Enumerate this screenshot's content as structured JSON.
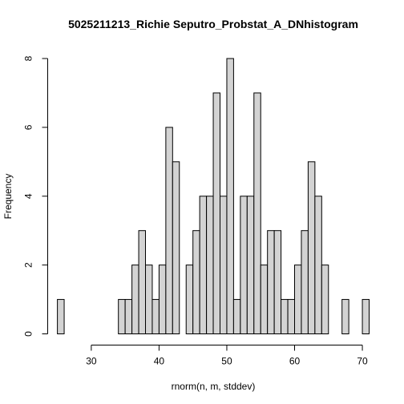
{
  "chart_data": {
    "type": "bar",
    "title": "5025211213_Richie Seputro_Probstat_A_DNhistogram",
    "xlabel": "rnorm(n, m, stddev)",
    "ylabel": "Frequency",
    "bin_start": 25,
    "bin_width": 1,
    "counts": [
      1,
      0,
      0,
      0,
      0,
      0,
      0,
      0,
      0,
      1,
      1,
      2,
      3,
      2,
      1,
      2,
      6,
      5,
      0,
      2,
      3,
      4,
      4,
      7,
      4,
      8,
      1,
      4,
      4,
      7,
      2,
      3,
      3,
      1,
      1,
      2,
      3,
      5,
      4,
      2,
      0,
      0,
      1,
      0,
      0,
      1
    ],
    "xlim": [
      25,
      71
    ],
    "ylim": [
      0,
      8
    ],
    "xticks": [
      30,
      40,
      50,
      60,
      70
    ],
    "yticks": [
      0,
      2,
      4,
      6,
      8
    ],
    "grid": false
  }
}
